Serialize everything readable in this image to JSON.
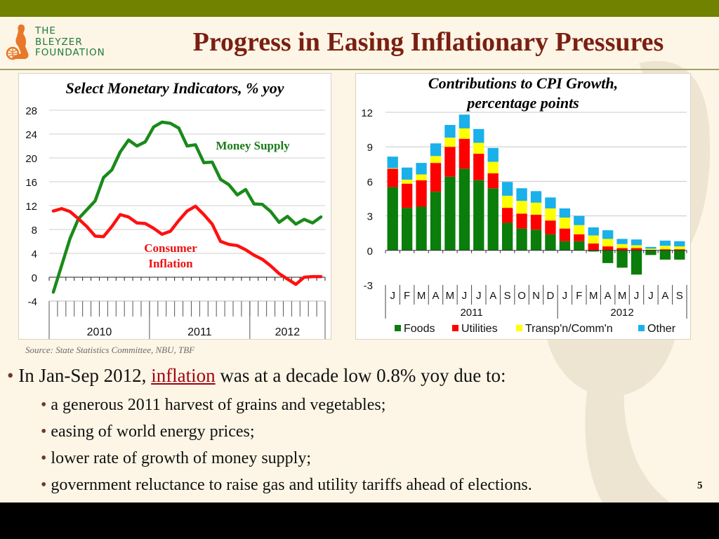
{
  "header": {
    "logo_lines": [
      "THE",
      "BLEYZER",
      "FOUNDATION"
    ],
    "title": "Progress in Easing Inflationary Pressures"
  },
  "colors": {
    "top_bar": "#708200",
    "title": "#7b1f12",
    "money_supply": "#1a8a1a",
    "consumer_inflation": "#ff1010",
    "foods": "#0a7d0a",
    "utilities": "#ff0000",
    "transport": "#ffff00",
    "other": "#1ab0ea"
  },
  "chart_data": [
    {
      "type": "line",
      "title": "Select Monetary Indicators, % yoy",
      "xlabel": "",
      "ylabel": "",
      "ylim": [
        -4,
        28
      ],
      "yticks": [
        28,
        24,
        20,
        16,
        12,
        8,
        4,
        0,
        -4
      ],
      "grid": true,
      "x_groups": [
        "2010",
        "2011",
        "2012"
      ],
      "x_months": [
        "2010-01",
        "2010-02",
        "2010-03",
        "2010-04",
        "2010-05",
        "2010-06",
        "2010-07",
        "2010-08",
        "2010-09",
        "2010-10",
        "2010-11",
        "2010-12",
        "2011-01",
        "2011-02",
        "2011-03",
        "2011-04",
        "2011-05",
        "2011-06",
        "2011-07",
        "2011-08",
        "2011-09",
        "2011-10",
        "2011-11",
        "2011-12",
        "2012-01",
        "2012-02",
        "2012-03",
        "2012-04",
        "2012-05",
        "2012-06",
        "2012-07",
        "2012-08",
        "2012-09"
      ],
      "series": [
        {
          "name": "Money Supply",
          "label_text": "Money Supply",
          "values": [
            -2.5,
            2.0,
            6.5,
            9.8,
            11.3,
            12.8,
            16.7,
            18.0,
            21.0,
            23.0,
            22.0,
            22.7,
            25.2,
            26.0,
            25.8,
            25.0,
            22.0,
            22.2,
            19.2,
            19.3,
            16.4,
            15.5,
            13.8,
            14.7,
            12.3,
            12.2,
            11.0,
            9.2,
            10.2,
            8.9,
            9.7,
            9.1,
            10.1
          ]
        },
        {
          "name": "Consumer Inflation",
          "label_text": [
            "Consumer",
            "Inflation"
          ],
          "values": [
            11.1,
            11.5,
            11.0,
            9.8,
            8.5,
            6.9,
            6.8,
            8.5,
            10.5,
            10.1,
            9.1,
            9.0,
            8.2,
            7.2,
            7.7,
            9.5,
            11.1,
            11.9,
            10.5,
            8.9,
            6.0,
            5.5,
            5.3,
            4.6,
            3.7,
            3.0,
            1.9,
            0.6,
            -0.3,
            -1.2,
            0.0,
            0.1,
            0.1
          ]
        }
      ]
    },
    {
      "type": "bar",
      "stacked": true,
      "title": "Contributions to CPI Growth, percentage points",
      "title_lines": [
        "Contributions to CPI Growth,",
        "percentage points"
      ],
      "xlabel": "",
      "ylabel": "",
      "ylim": [
        -3,
        12
      ],
      "yticks": [
        12,
        9,
        6,
        3,
        0,
        -3
      ],
      "grid": true,
      "legend_position": "bottom",
      "categories": [
        "J",
        "F",
        "M",
        "A",
        "M",
        "J",
        "J",
        "A",
        "S",
        "O",
        "N",
        "D",
        "J",
        "F",
        "M",
        "A",
        "M",
        "J",
        "J",
        "A",
        "S"
      ],
      "year_groups": [
        {
          "label": "2011",
          "count": 12
        },
        {
          "label": "2012",
          "count": 9
        }
      ],
      "series": [
        {
          "name": "Foods",
          "values": [
            5.5,
            3.7,
            3.8,
            5.1,
            6.4,
            7.1,
            6.1,
            5.4,
            2.4,
            1.9,
            1.8,
            1.4,
            0.8,
            0.8,
            -0.1,
            -1.1,
            -1.5,
            -2.1,
            -0.4,
            -0.8,
            -0.8
          ]
        },
        {
          "name": "Utilities",
          "values": [
            1.6,
            2.1,
            2.3,
            2.5,
            2.6,
            2.6,
            2.3,
            1.3,
            1.3,
            1.3,
            1.3,
            1.2,
            1.1,
            0.6,
            0.6,
            0.35,
            0.2,
            0.2,
            0.05,
            0.1,
            0.1
          ]
        },
        {
          "name": "Transp'n/Comm'n",
          "values": [
            0.05,
            0.35,
            0.5,
            0.6,
            0.8,
            0.9,
            0.95,
            1.0,
            1.05,
            1.1,
            1.05,
            1.05,
            0.95,
            0.8,
            0.7,
            0.65,
            0.35,
            0.25,
            0.1,
            0.3,
            0.25
          ]
        },
        {
          "name": "Other",
          "values": [
            1.0,
            1.05,
            1.0,
            1.1,
            1.1,
            1.2,
            1.2,
            1.2,
            1.2,
            1.1,
            1.0,
            0.95,
            0.8,
            0.8,
            0.7,
            0.75,
            0.45,
            0.5,
            0.15,
            0.45,
            0.45
          ]
        }
      ]
    }
  ],
  "source": "Source: State Statistics Committee, NBU, TBF",
  "bullets": {
    "main_prefix": "In Jan-Sep 2012, ",
    "main_link": "inflation",
    "main_suffix": " was at a decade low 0.8% yoy due to:",
    "sub": [
      "a generous 2011 harvest of grains and vegetables;",
      "easing of world energy prices;",
      "lower rate of growth of money supply;",
      "government reluctance to raise gas and utility tariffs ahead of elections."
    ]
  },
  "page_number": "5"
}
